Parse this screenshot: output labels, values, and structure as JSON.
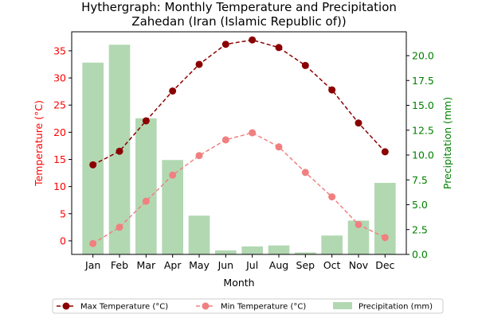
{
  "chart_data": {
    "type": "bar+line",
    "title": "Hythergraph: Monthly Temperature and Precipitation",
    "subtitle": "Zahedan (Iran (Islamic Republic of))",
    "xlabel": "Month",
    "ylabel_left": "Temperature (°C)",
    "ylabel_right": "Precipitation (mm)",
    "categories": [
      "Jan",
      "Feb",
      "Mar",
      "Apr",
      "May",
      "Jun",
      "Jul",
      "Aug",
      "Sep",
      "Oct",
      "Nov",
      "Dec"
    ],
    "ylim_left": [
      -2.5,
      38.5
    ],
    "ylim_right": [
      0,
      22.4
    ],
    "yticks_left": [
      0,
      5,
      10,
      15,
      20,
      25,
      30,
      35
    ],
    "yticks_right": [
      0.0,
      2.5,
      5.0,
      7.5,
      10.0,
      12.5,
      15.0,
      17.5,
      20.0
    ],
    "yticks_right_labels": [
      "0.0",
      "2.5",
      "5.0",
      "7.5",
      "10.0",
      "12.5",
      "15.0",
      "17.5",
      "20.0"
    ],
    "grid": false,
    "legend_placement": "bottom-center",
    "series": [
      {
        "name": "Max Temperature (°C)",
        "kind": "line",
        "axis": "left",
        "color": "#8b0000",
        "values": [
          14.0,
          16.5,
          22.1,
          27.6,
          32.5,
          36.2,
          37.0,
          35.6,
          32.3,
          27.8,
          21.7,
          16.4
        ]
      },
      {
        "name": "Min Temperature (°C)",
        "kind": "line",
        "axis": "left",
        "color": "#f08080",
        "values": [
          -0.5,
          2.5,
          7.3,
          12.1,
          15.7,
          18.6,
          19.9,
          17.3,
          12.6,
          8.1,
          3.0,
          0.6
        ]
      },
      {
        "name": "Precipitation (mm)",
        "kind": "bar",
        "axis": "right",
        "color": "#b2d8b2",
        "values": [
          19.3,
          21.1,
          13.7,
          9.5,
          3.9,
          0.4,
          0.8,
          0.9,
          0.2,
          1.9,
          3.4,
          7.2
        ]
      }
    ],
    "axis_colors": {
      "left": "#ff0000",
      "right": "#008000"
    }
  }
}
